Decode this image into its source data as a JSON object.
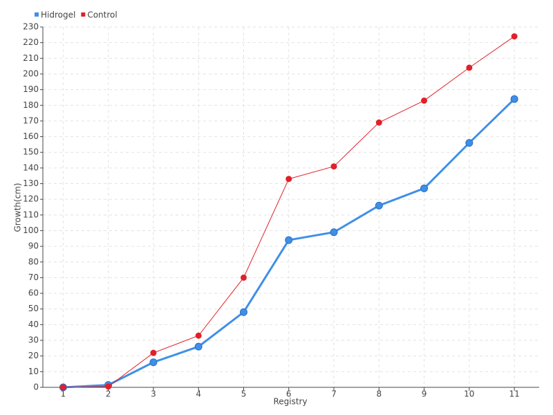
{
  "chart_data": {
    "type": "line",
    "x_label": "Registry",
    "y_label": "Growth(cm)",
    "categories": [
      "1",
      "2",
      "3",
      "4",
      "5",
      "6",
      "7",
      "8",
      "9",
      "10",
      "11"
    ],
    "series": [
      {
        "name": "Hidrogel",
        "color": "#3f8fe8",
        "values": [
          0,
          1.5,
          16,
          26,
          48,
          94,
          99,
          116,
          127,
          156,
          184
        ]
      },
      {
        "name": "Control",
        "color": "#e0202a",
        "values": [
          0,
          0.5,
          22,
          33,
          70,
          133,
          141,
          169,
          183,
          204,
          224
        ]
      }
    ],
    "ylim": [
      0,
      230
    ],
    "yticks": [
      0,
      10,
      20,
      30,
      40,
      50,
      60,
      70,
      80,
      90,
      100,
      110,
      120,
      130,
      140,
      150,
      160,
      170,
      180,
      190,
      200,
      210,
      220,
      230
    ],
    "grid": true,
    "legend": "top-left"
  }
}
